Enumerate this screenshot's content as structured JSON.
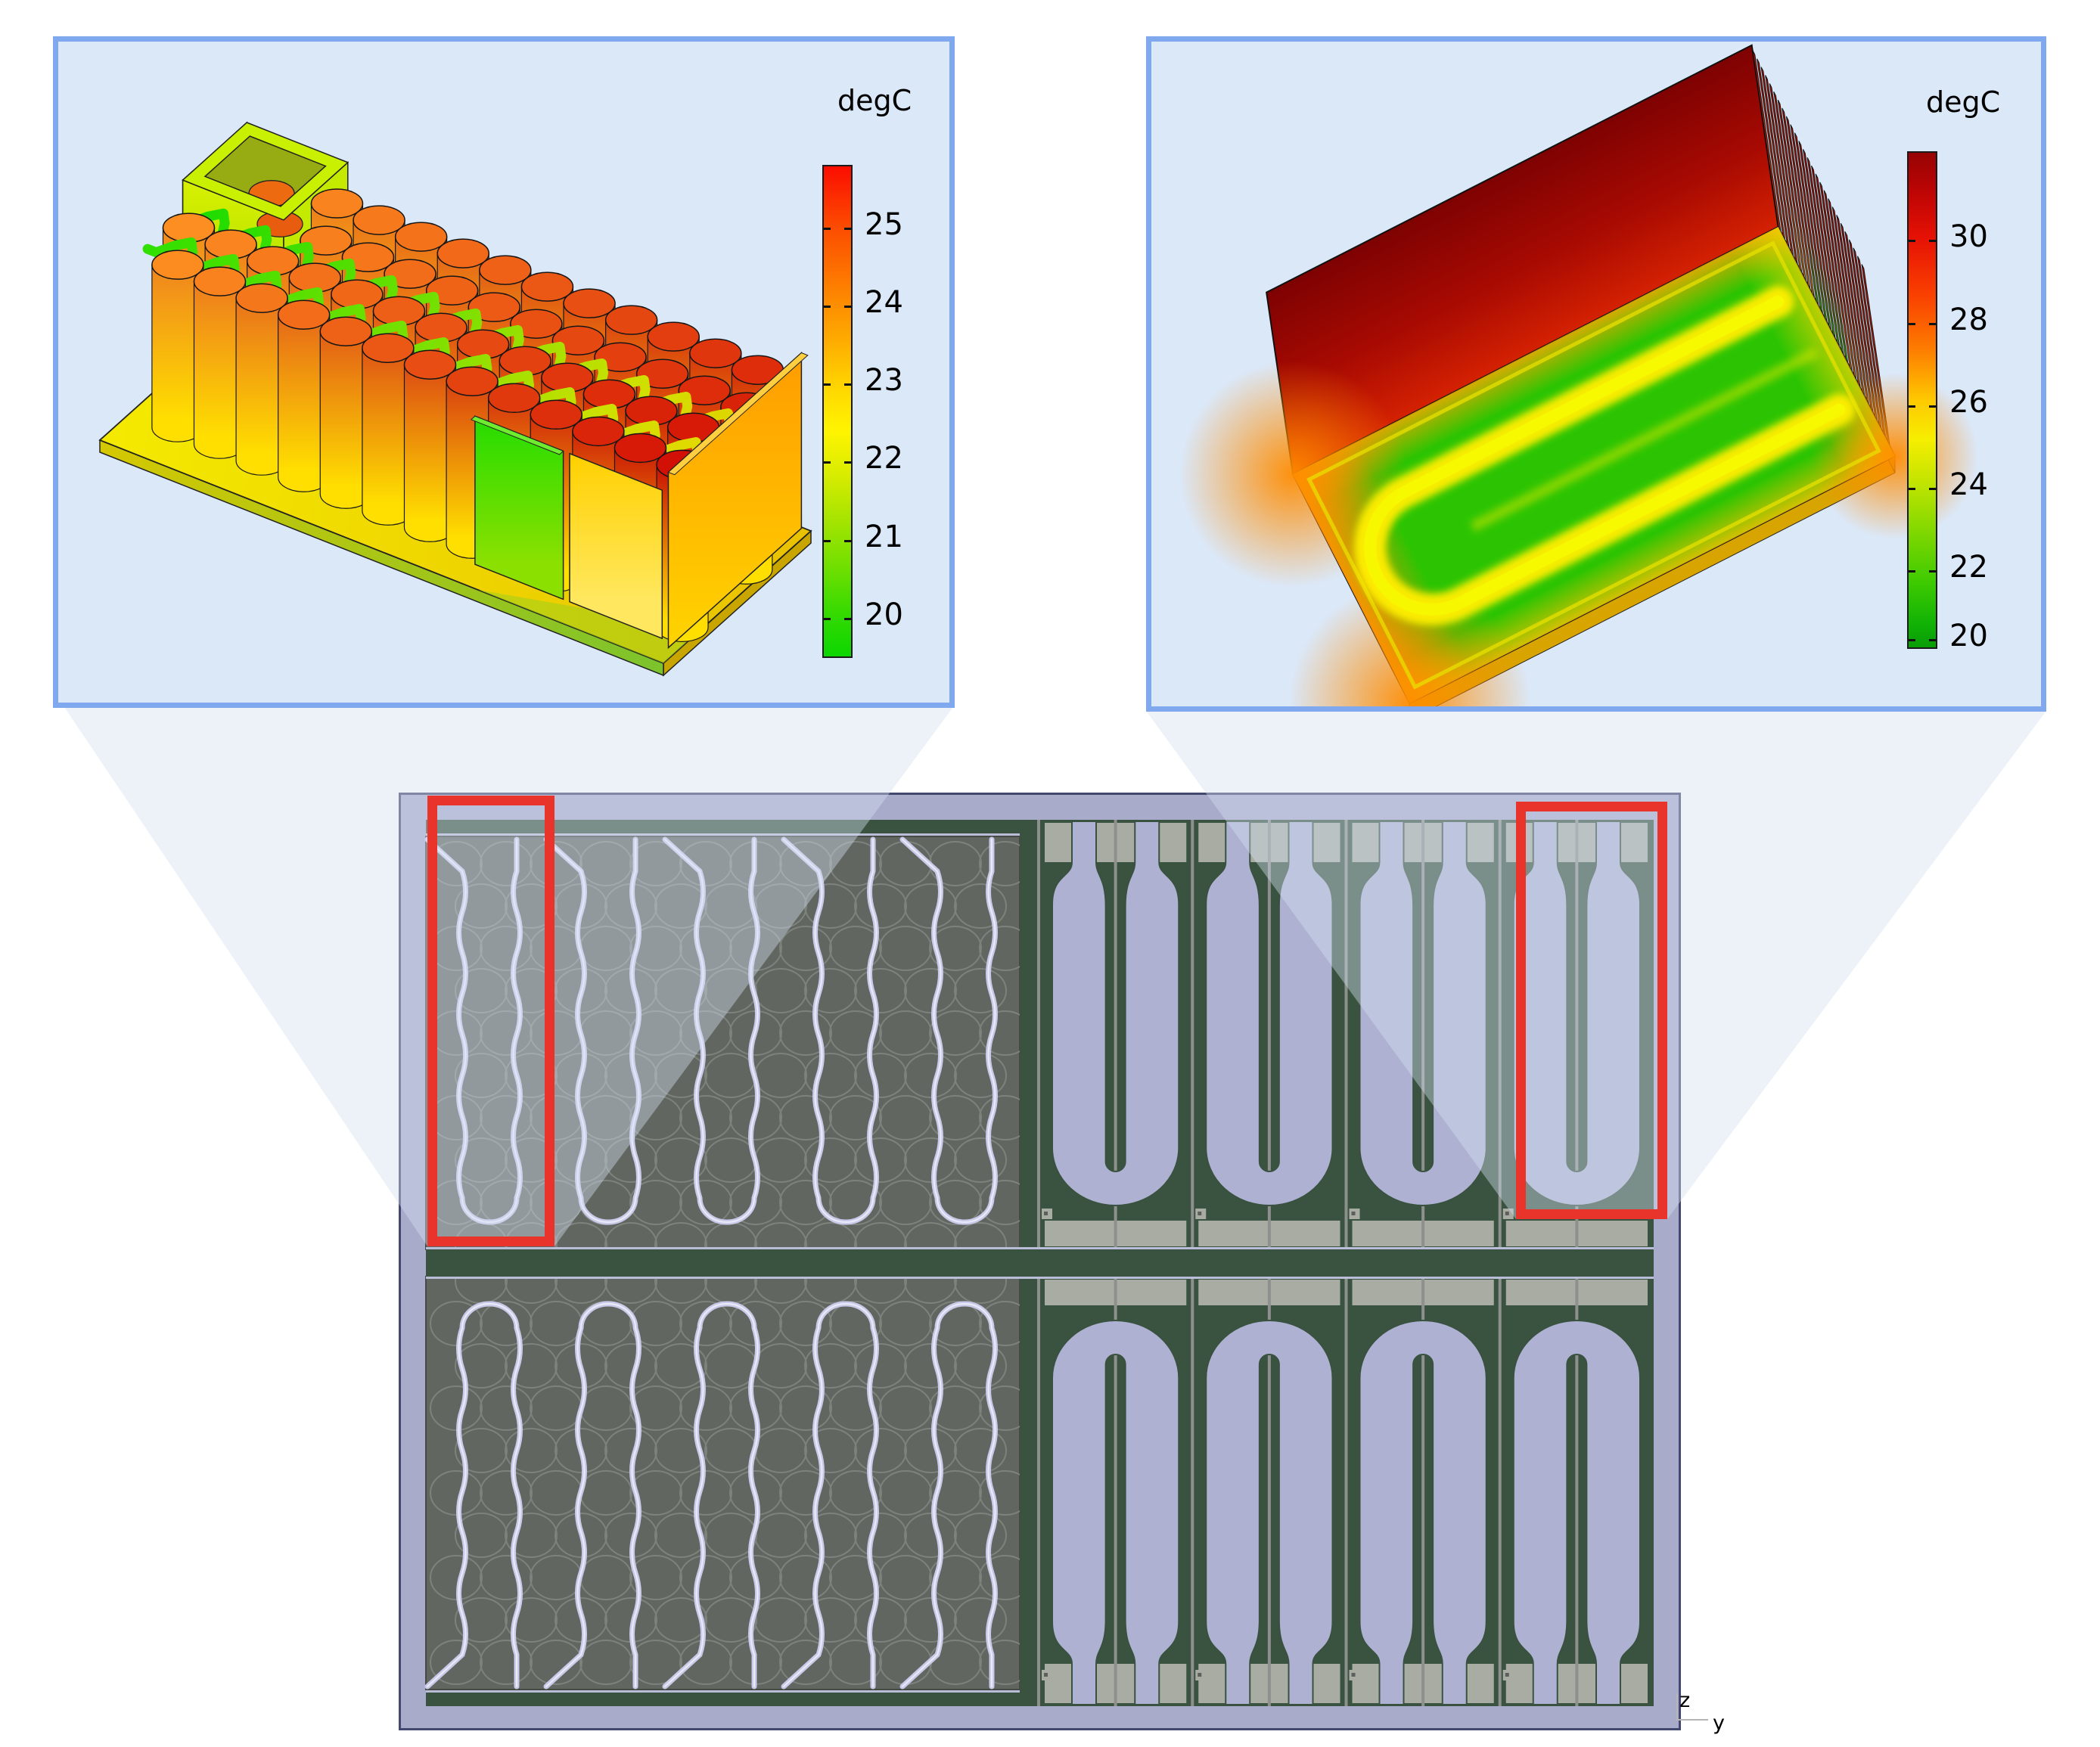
{
  "legend_left": {
    "title": "degC",
    "ticks": [
      "25",
      "24",
      "23",
      "22",
      "21",
      "20"
    ],
    "gradient": [
      "#fb0d00 0%",
      "#fc4a00 12%",
      "#fd7c00 24%",
      "#feae00 36%",
      "#ffd900 46%",
      "#fff400 54%",
      "#d8ec00 63%",
      "#a6e400 72%",
      "#6fdf00 82%",
      "#36da00 91%",
      "#0cd600 100%"
    ]
  },
  "legend_right": {
    "title": "degC",
    "ticks": [
      "30",
      "28",
      "26",
      "24",
      "22",
      "20"
    ],
    "gradient": [
      "#970303 0%",
      "#bd0504 8%",
      "#e51104 17%",
      "#fa4100 29%",
      "#fd7e00 40%",
      "#fec900 50%",
      "#f6ee00 58%",
      "#c0e400 67%",
      "#7ed700 77%",
      "#3dca00 87%",
      "#12b305 95%",
      "#089d06 100%"
    ]
  },
  "axis_triad": {
    "z": "z",
    "y": "y"
  },
  "colors": {
    "highlight": "#e8342a",
    "cone_fill": "rgba(213,224,241,0.42)",
    "inset_bg": "#dbe8f8",
    "inset_border": "#7fa8ef",
    "frame": "#a9abcb",
    "frame_outline": "#43486e",
    "frame_light": "#babdd8",
    "green": "#3a5340",
    "module_dark": "#626660",
    "module_edge": "#454a44",
    "circle": "#7d827c",
    "tube": "#c9cae9",
    "tube_light": "#e9eaf8",
    "lavender": "#aeb1d2",
    "plate_gray": "#a9aca3",
    "seam": "#8d908d"
  },
  "figures": {
    "pack_scene": {
      "cell_columns": 13,
      "cell_rows": 4,
      "cell_cool": "#ff9422",
      "cell_hot": "#d31005",
      "cell_base": "#ffdf00",
      "ribbon_cold": "#16dc00",
      "ribbon_warm": "#e2d400",
      "plate_light": "#f4ea00",
      "plate_dark": "#e9c100"
    },
    "plate_scene": {
      "fin_count": 27,
      "top_green": "#2cc402",
      "channel_yellow": "#ffee00",
      "back_dark": "#7e0202",
      "back_mid": "#a80a02",
      "back_light": "#d42102",
      "rim_orange": "#f0a000"
    },
    "overview": {
      "left_module_rows": 2,
      "cooling_hairpins_per_module": 5,
      "right_modules_per_row": 4,
      "right_module_rows": 2
    }
  }
}
